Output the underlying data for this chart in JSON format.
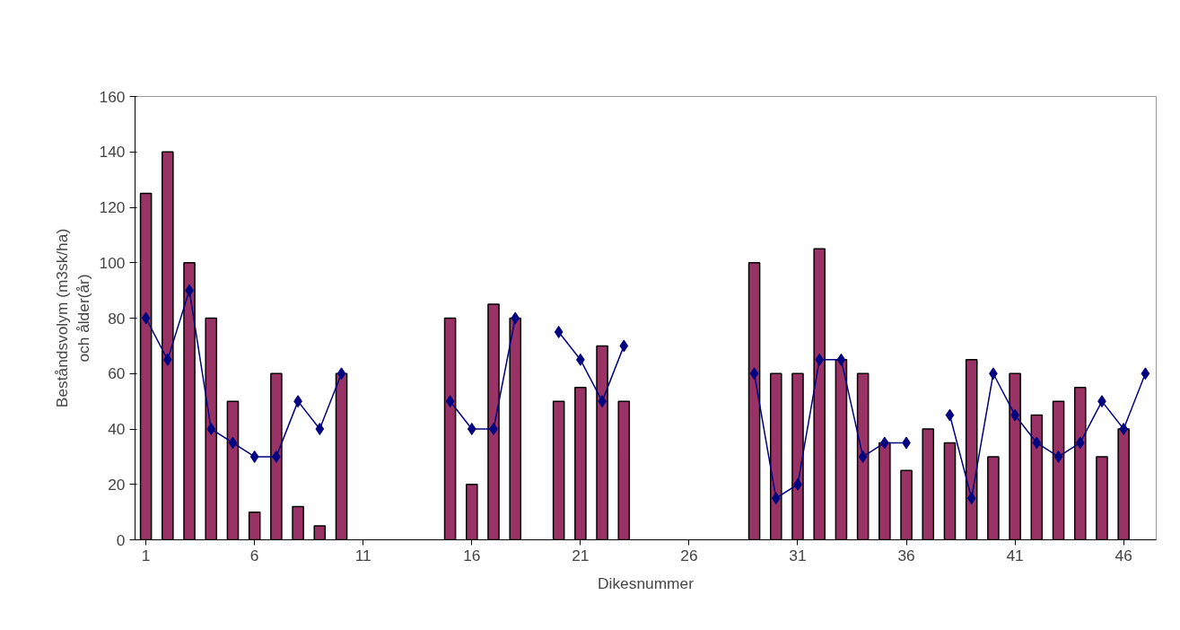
{
  "chart_data": {
    "type": "bar",
    "xlabel": "Dikesnummer",
    "ylabel": "Beståndsvolym (m3sk/ha)\noch ålder(år)",
    "categories": [
      "1",
      null,
      null,
      null,
      null,
      "6",
      null,
      null,
      null,
      null,
      "11",
      null,
      null,
      null,
      null,
      "16",
      null,
      null,
      null,
      null,
      "21",
      null,
      null,
      null,
      null,
      "26",
      null,
      null,
      null,
      null,
      "31",
      null,
      null,
      null,
      null,
      "36",
      null,
      null,
      null,
      null,
      "41",
      null,
      null,
      null,
      null,
      "46",
      null
    ],
    "series": [
      {
        "color": "#993366",
        "values": [
          125,
          140,
          100,
          80,
          50,
          10,
          60,
          12,
          5,
          60,
          null,
          null,
          null,
          null,
          80,
          20,
          85,
          80,
          null,
          50,
          55,
          70,
          50,
          null,
          null,
          null,
          null,
          null,
          100,
          60,
          60,
          105,
          65,
          60,
          35,
          25,
          40,
          35,
          65,
          30,
          60,
          45,
          50,
          55,
          30,
          40,
          null
        ]
      },
      {
        "type": "line",
        "color": "#000080",
        "marker": "diamond",
        "values": [
          80,
          65,
          90,
          40,
          35,
          30,
          30,
          50,
          40,
          60,
          null,
          null,
          null,
          null,
          50,
          40,
          40,
          80,
          null,
          75,
          65,
          50,
          70,
          null,
          null,
          null,
          null,
          null,
          60,
          15,
          20,
          65,
          65,
          30,
          35,
          35,
          null,
          45,
          15,
          60,
          45,
          35,
          30,
          35,
          50,
          40,
          60
        ]
      }
    ],
    "ylim": [
      0,
      160
    ],
    "yticks": [
      0,
      20,
      40,
      60,
      80,
      100,
      120,
      140,
      160
    ],
    "grid": false
  }
}
